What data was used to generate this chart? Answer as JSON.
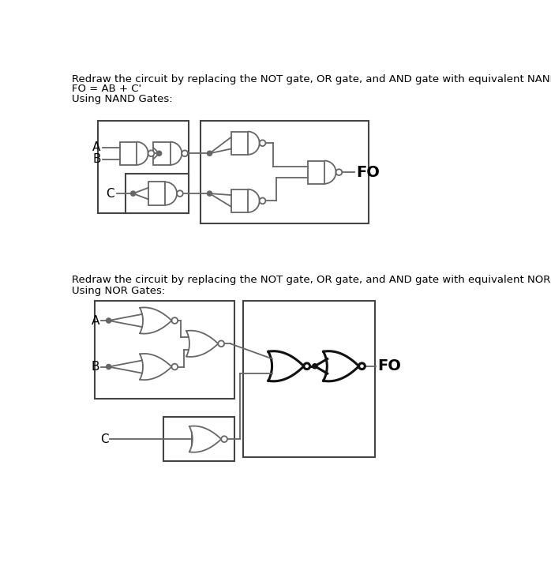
{
  "title1": "Redraw the circuit by replacing the NOT gate, OR gate, and AND gate with equivalent NAND gate.",
  "title1b": "FO = AB + C'",
  "title2": "Using NAND Gates:",
  "title3": "Redraw the circuit by replacing the NOT gate, OR gate, and AND gate with equivalent NOR gate.",
  "title4": "Using NOR Gates:",
  "fo_label": "FO",
  "bg_color": "#ffffff",
  "line_color": "#666666",
  "text_color": "#000000",
  "font_size_title": 9.5,
  "font_size_label": 11
}
